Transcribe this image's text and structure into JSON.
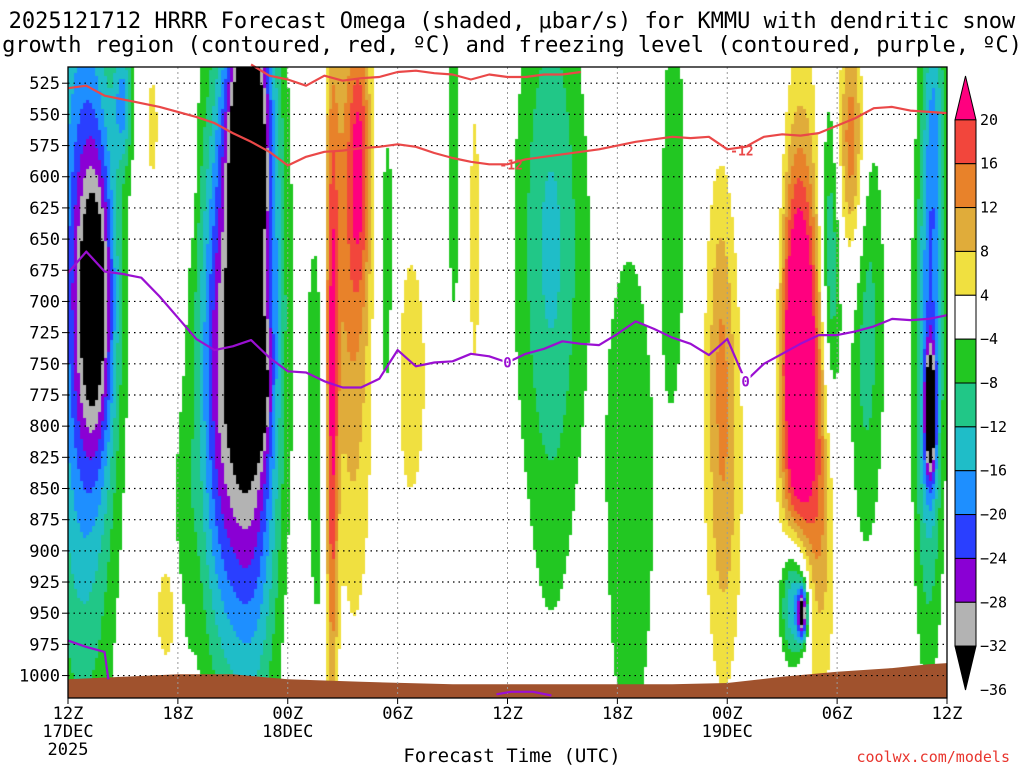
{
  "chart_data": {
    "type": "heatmap",
    "title_line1": "2025121712 HRRR Forecast Omega (shaded, μbar/s) for KMMU with dendritic snow",
    "title_line2": "growth region (contoured, red, ºC) and freezing level (contoured, purple, ºC)",
    "xlabel": "Forecast Time (UTC)",
    "credit": "coolwx.com/models",
    "x_hours": [
      0,
      48
    ],
    "x_ticks": [
      {
        "h": 0,
        "label": "12Z",
        "sub1": "17DEC",
        "sub2": "2025"
      },
      {
        "h": 6,
        "label": "18Z",
        "sub1": "",
        "sub2": ""
      },
      {
        "h": 12,
        "label": "00Z",
        "sub1": "18DEC",
        "sub2": ""
      },
      {
        "h": 18,
        "label": "06Z",
        "sub1": "",
        "sub2": ""
      },
      {
        "h": 24,
        "label": "12Z",
        "sub1": "",
        "sub2": ""
      },
      {
        "h": 30,
        "label": "18Z",
        "sub1": "",
        "sub2": ""
      },
      {
        "h": 36,
        "label": "00Z",
        "sub1": "19DEC",
        "sub2": ""
      },
      {
        "h": 42,
        "label": "06Z",
        "sub1": "",
        "sub2": ""
      },
      {
        "h": 48,
        "label": "12Z",
        "sub1": "",
        "sub2": ""
      }
    ],
    "y_levels_hpa": [
      "525",
      "550",
      "575",
      "600",
      "625",
      "650",
      "675",
      "700",
      "725",
      "750",
      "775",
      "800",
      "825",
      "850",
      "875",
      "900",
      "925",
      "950",
      "975",
      "1000"
    ],
    "colorbar": {
      "labels": [
        "20",
        "16",
        "12",
        "8",
        "4",
        "−4",
        "−8",
        "−12",
        "−16",
        "−20",
        "−24",
        "−28",
        "−32",
        "−36"
      ],
      "bins": [
        {
          "color": "#ff007f"
        },
        {
          "color": "#f2463c"
        },
        {
          "color": "#e8822a"
        },
        {
          "color": "#e0ac3a"
        },
        {
          "color": "#f0e040"
        },
        {
          "color": "#ffffff"
        },
        {
          "color": "#22c722"
        },
        {
          "color": "#21c787"
        },
        {
          "color": "#1fbdc8"
        },
        {
          "color": "#1e8fff"
        },
        {
          "color": "#2a3fff"
        },
        {
          "color": "#8a00d4"
        },
        {
          "color": "#b3b3b3"
        },
        {
          "color": "#000000"
        }
      ]
    },
    "contours": [
      {
        "name": "dgz-top",
        "color": "#ea4848",
        "label": "",
        "points": [
          [
            0,
            529
          ],
          [
            1,
            527
          ],
          [
            2,
            535
          ],
          [
            3,
            538
          ],
          [
            4,
            541
          ],
          [
            5,
            544
          ],
          [
            6,
            548
          ],
          [
            7,
            552
          ],
          [
            8,
            557
          ],
          [
            9,
            565
          ],
          [
            10,
            572
          ],
          [
            11,
            580
          ],
          [
            12,
            591
          ],
          [
            13,
            584
          ],
          [
            14,
            580
          ],
          [
            15,
            579
          ],
          [
            16,
            577
          ],
          [
            17,
            576
          ],
          [
            18,
            574
          ],
          [
            19,
            576
          ],
          [
            20,
            581
          ],
          [
            21,
            585
          ],
          [
            22,
            588
          ],
          [
            23,
            590
          ],
          [
            24,
            590
          ],
          [
            25,
            586
          ],
          [
            26,
            584
          ],
          [
            27,
            582
          ],
          [
            28,
            580
          ],
          [
            29,
            578
          ],
          [
            30,
            575
          ],
          [
            31,
            572
          ],
          [
            32,
            570
          ],
          [
            33,
            568
          ],
          [
            34,
            569
          ],
          [
            35,
            568
          ],
          [
            36,
            578
          ],
          [
            37,
            576
          ],
          [
            38,
            568
          ],
          [
            39,
            566
          ],
          [
            40,
            567
          ],
          [
            41,
            565
          ],
          [
            42,
            559
          ],
          [
            43,
            553
          ],
          [
            44,
            545
          ],
          [
            45,
            544
          ],
          [
            46,
            547
          ],
          [
            47,
            548
          ],
          [
            48,
            549
          ]
        ]
      },
      {
        "name": "dgz-top-upper",
        "color": "#ea4848",
        "label": "",
        "points": [
          [
            10,
            510
          ],
          [
            11,
            519
          ],
          [
            12,
            522
          ],
          [
            13,
            527
          ],
          [
            14,
            519
          ],
          [
            15,
            523
          ],
          [
            16,
            521
          ],
          [
            17,
            520
          ],
          [
            18,
            516
          ],
          [
            19,
            515
          ],
          [
            20,
            517
          ],
          [
            21,
            518
          ],
          [
            22,
            522
          ],
          [
            23,
            518
          ],
          [
            24,
            520
          ],
          [
            25,
            520
          ],
          [
            26,
            518
          ],
          [
            27,
            518
          ],
          [
            28,
            516
          ]
        ]
      },
      {
        "name": "minus12-label-1",
        "color": "#ea4848",
        "label": "-12",
        "label_at": [
          24.2,
          590
        ],
        "points": []
      },
      {
        "name": "minus12-label-2",
        "color": "#ea4848",
        "label": "-12",
        "label_at": [
          36.8,
          579
        ],
        "points": []
      },
      {
        "name": "freezing-level",
        "color": "#9a0fd2",
        "label": "0",
        "points": [
          [
            0,
            677
          ],
          [
            1,
            660
          ],
          [
            2,
            676
          ],
          [
            3,
            678
          ],
          [
            4,
            681
          ],
          [
            5,
            696
          ],
          [
            6,
            713
          ],
          [
            7,
            730
          ],
          [
            8,
            739
          ],
          [
            9,
            736
          ],
          [
            10,
            731
          ],
          [
            11,
            745
          ],
          [
            12,
            756
          ],
          [
            13,
            757
          ],
          [
            14,
            764
          ],
          [
            15,
            769
          ],
          [
            16,
            769
          ],
          [
            17,
            762
          ],
          [
            18,
            739
          ],
          [
            19,
            752
          ],
          [
            20,
            749
          ],
          [
            21,
            748
          ],
          [
            22,
            742
          ],
          [
            23,
            744
          ],
          [
            24,
            749
          ],
          [
            25,
            742
          ],
          [
            26,
            738
          ],
          [
            27,
            732
          ],
          [
            28,
            734
          ],
          [
            29,
            735
          ],
          [
            30,
            726
          ],
          [
            31,
            716
          ],
          [
            32,
            722
          ],
          [
            33,
            729
          ],
          [
            34,
            734
          ],
          [
            35,
            743
          ],
          [
            36,
            730
          ],
          [
            37,
            764
          ],
          [
            38,
            750
          ],
          [
            39,
            742
          ],
          [
            40,
            734
          ],
          [
            41,
            727
          ],
          [
            42,
            727
          ],
          [
            43,
            724
          ],
          [
            44,
            720
          ],
          [
            45,
            714
          ],
          [
            46,
            715
          ],
          [
            47,
            714
          ],
          [
            48,
            711
          ]
        ]
      },
      {
        "name": "freezing-level-low",
        "color": "#9a0fd2",
        "label": "",
        "points": [
          [
            0,
            972
          ],
          [
            1,
            977
          ],
          [
            2,
            981
          ],
          [
            2.2,
            1003
          ]
        ]
      },
      {
        "name": "freezing-level-surface",
        "color": "#9a0fd2",
        "label": "",
        "points": [
          [
            23.4,
            1015
          ],
          [
            24.2,
            1013
          ],
          [
            25.4,
            1013
          ],
          [
            26.4,
            1016
          ]
        ]
      }
    ],
    "blobs": [
      {
        "t": 0.8,
        "p": 690,
        "sh": 1.8,
        "sp": 330,
        "v": -21
      },
      {
        "t": 1.5,
        "p": 700,
        "sh": 1.0,
        "sp": 120,
        "v": -24
      },
      {
        "t": 3.0,
        "p": 540,
        "sh": 0.5,
        "sp": 50,
        "v": -14
      },
      {
        "t": 4.6,
        "p": 560,
        "sh": 0.4,
        "sp": 60,
        "v": 6
      },
      {
        "t": 6.7,
        "p": 580,
        "sh": 0.3,
        "sp": 60,
        "v": 5
      },
      {
        "t": 6.3,
        "p": 900,
        "sh": 0.6,
        "sp": 120,
        "v": -6
      },
      {
        "t": 5.5,
        "p": 950,
        "sh": 0.8,
        "sp": 50,
        "v": 7
      },
      {
        "t": 8.2,
        "p": 760,
        "sh": 1.3,
        "sp": 220,
        "v": -20
      },
      {
        "t": 10.0,
        "p": 710,
        "sh": 1.5,
        "sp": 270,
        "v": -38
      },
      {
        "t": 10.4,
        "p": 770,
        "sh": 0.5,
        "sp": 40,
        "v": -18
      },
      {
        "t": 9.8,
        "p": 560,
        "sh": 1.0,
        "sp": 80,
        "v": -24
      },
      {
        "t": 13.8,
        "p": 780,
        "sh": 0.9,
        "sp": 250,
        "v": -7
      },
      {
        "t": 14.4,
        "p": 800,
        "sh": 0.35,
        "sp": 250,
        "v": 21
      },
      {
        "t": 14.6,
        "p": 620,
        "sh": 0.8,
        "sp": 200,
        "v": 6
      },
      {
        "t": 15.6,
        "p": 690,
        "sh": 1.1,
        "sp": 260,
        "v": 11
      },
      {
        "t": 15.9,
        "p": 590,
        "sh": 0.6,
        "sp": 100,
        "v": 14
      },
      {
        "t": 17.4,
        "p": 690,
        "sh": 0.6,
        "sp": 180,
        "v": -7
      },
      {
        "t": 18.7,
        "p": 760,
        "sh": 1.0,
        "sp": 120,
        "v": 7
      },
      {
        "t": 21.1,
        "p": 590,
        "sh": 0.5,
        "sp": 180,
        "v": -6
      },
      {
        "t": 22.2,
        "p": 650,
        "sh": 0.6,
        "sp": 220,
        "v": 5
      },
      {
        "t": 26.4,
        "p": 680,
        "sh": 1.6,
        "sp": 330,
        "v": -7
      },
      {
        "t": 26.3,
        "p": 650,
        "sh": 2.2,
        "sp": 180,
        "v": -6
      },
      {
        "t": 30.7,
        "p": 860,
        "sh": 1.6,
        "sp": 250,
        "v": -7
      },
      {
        "t": 33.1,
        "p": 610,
        "sh": 0.8,
        "sp": 220,
        "v": -6
      },
      {
        "t": 35.8,
        "p": 830,
        "sh": 1.0,
        "sp": 180,
        "v": 11
      },
      {
        "t": 35.6,
        "p": 700,
        "sh": 0.7,
        "sp": 120,
        "v": 5
      },
      {
        "t": 40.1,
        "p": 770,
        "sh": 1.3,
        "sp": 230,
        "v": 14
      },
      {
        "t": 39.8,
        "p": 740,
        "sh": 0.9,
        "sp": 140,
        "v": 22
      },
      {
        "t": 38.4,
        "p": 660,
        "sh": 0.9,
        "sp": 200,
        "v": -6
      },
      {
        "t": 41.2,
        "p": 830,
        "sh": 0.8,
        "sp": 160,
        "v": 9
      },
      {
        "t": 39.7,
        "p": 940,
        "sh": 0.8,
        "sp": 55,
        "v": -25
      },
      {
        "t": 40.1,
        "p": 950,
        "sh": 0.25,
        "sp": 20,
        "v": -30
      },
      {
        "t": 41.6,
        "p": 680,
        "sh": 0.6,
        "sp": 150,
        "v": -16
      },
      {
        "t": 42.7,
        "p": 570,
        "sh": 0.8,
        "sp": 90,
        "v": 11
      },
      {
        "t": 42.9,
        "p": 590,
        "sh": 0.6,
        "sp": 110,
        "v": 6
      },
      {
        "t": 43.6,
        "p": 720,
        "sh": 1.0,
        "sp": 180,
        "v": -10
      },
      {
        "t": 47.0,
        "p": 760,
        "sh": 0.8,
        "sp": 210,
        "v": -17
      },
      {
        "t": 47.1,
        "p": 790,
        "sh": 0.3,
        "sp": 50,
        "v": -32
      },
      {
        "t": 47.3,
        "p": 560,
        "sh": 0.6,
        "sp": 150,
        "v": -12
      }
    ],
    "terrain": {
      "color": "#a0522d",
      "points": [
        [
          0,
          1003
        ],
        [
          3,
          1001
        ],
        [
          6,
          999
        ],
        [
          9,
          999
        ],
        [
          12,
          1003
        ],
        [
          16,
          1005
        ],
        [
          21,
          1007
        ],
        [
          27,
          1007
        ],
        [
          33,
          1007
        ],
        [
          36,
          1006
        ],
        [
          39,
          1001
        ],
        [
          42,
          997
        ],
        [
          45,
          994
        ],
        [
          47,
          991
        ],
        [
          48,
          990
        ]
      ]
    }
  }
}
